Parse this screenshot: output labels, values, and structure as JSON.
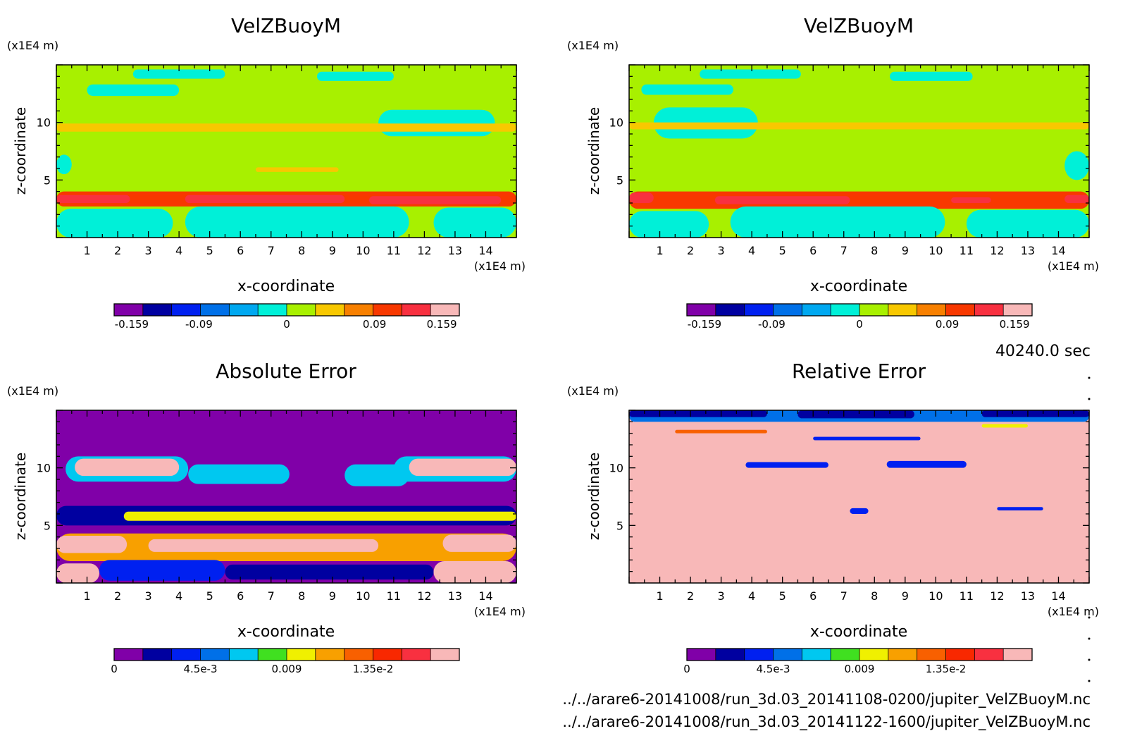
{
  "time_label": "40240.0 sec",
  "files": [
    "../../arare6-20141008/run_3d.03_20141108-0200/jupiter_VelZBuoyM.nc",
    "../../arare6-20141008/run_3d.03_20141122-1600/jupiter_VelZBuoyM.nc"
  ],
  "colors": {
    "vel": [
      "#8000a8",
      "#0000a0",
      "#0020f0",
      "#0070e8",
      "#00a8f0",
      "#00f0d8",
      "#a8f000",
      "#f8c800",
      "#f88000",
      "#f83800",
      "#f83040",
      "#f8b8b8"
    ],
    "err": [
      "#8000a8",
      "#0000a0",
      "#0020f0",
      "#0070e8",
      "#00c8f0",
      "#40e020",
      "#f0f000",
      "#f8a000",
      "#f86000",
      "#f82800",
      "#f83040",
      "#f8b8b8"
    ]
  },
  "chart_data": [
    {
      "type": "heatmap",
      "title": "VelZBuoyM",
      "xlabel": "x-coordinate",
      "ylabel": "z-coordinate",
      "x_unit": "(x1E4 m)",
      "y_unit": "(x1E4 m)",
      "xlim": [
        0,
        15
      ],
      "ylim": [
        0,
        15
      ],
      "xticks": [
        "1",
        "2",
        "3",
        "4",
        "5",
        "6",
        "7",
        "8",
        "9",
        "10",
        "11",
        "12",
        "13",
        "14"
      ],
      "yticks": [
        "5",
        "10"
      ],
      "colorbar": {
        "ticks": [
          "-0.159",
          "-0.09",
          "0",
          "0.09",
          "0.159"
        ],
        "tick_values": [
          -0.159,
          -0.09,
          0,
          0.09,
          0.159
        ],
        "range": [
          -0.177,
          0.177
        ],
        "levels": 12
      },
      "background_value": 0.01,
      "features": [
        {
          "x": [
            2.5,
            5.5
          ],
          "z": [
            13.8,
            14.6
          ],
          "value": -0.01
        },
        {
          "x": [
            8.5,
            11
          ],
          "z": [
            13.6,
            14.4
          ],
          "value": -0.01
        },
        {
          "x": [
            1,
            4
          ],
          "z": [
            12.3,
            13.3
          ],
          "value": -0.01
        },
        {
          "x": [
            10.5,
            14.3
          ],
          "z": [
            8.8,
            11.1
          ],
          "value": -0.01
        },
        {
          "x": [
            0,
            15
          ],
          "z": [
            9.2,
            9.9
          ],
          "value": 0.045
        },
        {
          "x": [
            6.5,
            9.2
          ],
          "z": [
            5.7,
            6.1
          ],
          "value": 0.045
        },
        {
          "x": [
            0,
            15
          ],
          "z": [
            2.7,
            4.0
          ],
          "value": 0.09
        },
        {
          "x": [
            0,
            2.4
          ],
          "z": [
            3.0,
            3.7
          ],
          "value": 0.14
        },
        {
          "x": [
            4.2,
            9.4
          ],
          "z": [
            3.0,
            3.7
          ],
          "value": 0.14
        },
        {
          "x": [
            10.2,
            14.5
          ],
          "z": [
            2.9,
            3.6
          ],
          "value": 0.14
        },
        {
          "x": [
            0,
            3.8
          ],
          "z": [
            0,
            2.5
          ],
          "value": -0.01
        },
        {
          "x": [
            4.2,
            11.5
          ],
          "z": [
            0,
            2.7
          ],
          "value": -0.01
        },
        {
          "x": [
            12.3,
            15
          ],
          "z": [
            0,
            2.6
          ],
          "value": -0.01
        },
        {
          "x": [
            0,
            0.5
          ],
          "z": [
            5.5,
            7.2
          ],
          "value": -0.01
        }
      ]
    },
    {
      "type": "heatmap",
      "title": "VelZBuoyM",
      "xlabel": "x-coordinate",
      "ylabel": "z-coordinate",
      "x_unit": "(x1E4 m)",
      "y_unit": "(x1E4 m)",
      "xlim": [
        0,
        15
      ],
      "ylim": [
        0,
        15
      ],
      "xticks": [
        "1",
        "2",
        "3",
        "4",
        "5",
        "6",
        "7",
        "8",
        "9",
        "10",
        "11",
        "12",
        "13",
        "14"
      ],
      "yticks": [
        "5",
        "10"
      ],
      "colorbar": {
        "ticks": [
          "-0.159",
          "-0.09",
          "0",
          "0.09",
          "0.159"
        ],
        "tick_values": [
          -0.159,
          -0.09,
          0,
          0.09,
          0.159
        ],
        "range": [
          -0.177,
          0.177
        ],
        "levels": 12
      },
      "background_value": 0.01,
      "features": [
        {
          "x": [
            2.3,
            5.6
          ],
          "z": [
            13.8,
            14.6
          ],
          "value": -0.01
        },
        {
          "x": [
            8.5,
            11.2
          ],
          "z": [
            13.6,
            14.4
          ],
          "value": -0.01
        },
        {
          "x": [
            0.4,
            3.4
          ],
          "z": [
            12.4,
            13.3
          ],
          "value": -0.01
        },
        {
          "x": [
            0.8,
            4.2
          ],
          "z": [
            8.6,
            11.3
          ],
          "value": -0.01
        },
        {
          "x": [
            0,
            15
          ],
          "z": [
            9.4,
            10.0
          ],
          "value": 0.045
        },
        {
          "x": [
            0,
            15
          ],
          "z": [
            2.5,
            4.0
          ],
          "value": 0.09
        },
        {
          "x": [
            0,
            0.8
          ],
          "z": [
            3.0,
            3.9
          ],
          "value": 0.14
        },
        {
          "x": [
            2.8,
            7.2
          ],
          "z": [
            2.9,
            3.6
          ],
          "value": 0.14
        },
        {
          "x": [
            10.5,
            11.8
          ],
          "z": [
            3.0,
            3.5
          ],
          "value": 0.14
        },
        {
          "x": [
            14.2,
            15
          ],
          "z": [
            3.0,
            3.7
          ],
          "value": 0.14
        },
        {
          "x": [
            0,
            2.6
          ],
          "z": [
            0,
            2.3
          ],
          "value": -0.01
        },
        {
          "x": [
            3.3,
            10.3
          ],
          "z": [
            0,
            2.7
          ],
          "value": -0.01
        },
        {
          "x": [
            11,
            15
          ],
          "z": [
            0,
            2.4
          ],
          "value": -0.01
        },
        {
          "x": [
            14.2,
            15
          ],
          "z": [
            5.0,
            7.5
          ],
          "value": -0.01
        }
      ]
    },
    {
      "type": "heatmap",
      "title": "Absolute Error",
      "xlabel": "x-coordinate",
      "ylabel": "z-coordinate",
      "x_unit": "(x1E4 m)",
      "y_unit": "(x1E4 m)",
      "xlim": [
        0,
        15
      ],
      "ylim": [
        0,
        15
      ],
      "xticks": [
        "1",
        "2",
        "3",
        "4",
        "5",
        "6",
        "7",
        "8",
        "9",
        "10",
        "11",
        "12",
        "13",
        "14"
      ],
      "yticks": [
        "5",
        "10"
      ],
      "colorbar": {
        "ticks": [
          "0",
          "4.5e-3",
          "0.009",
          "1.35e-2"
        ],
        "tick_values": [
          0,
          0.0045,
          0.009,
          0.0135
        ],
        "range": [
          0,
          0.018
        ],
        "levels": 12
      },
      "background_value": 0,
      "features": [
        {
          "x": [
            0.3,
            4.3
          ],
          "z": [
            8.8,
            11.0
          ],
          "value": 0.0068
        },
        {
          "x": [
            0.6,
            4.0
          ],
          "z": [
            9.3,
            10.8
          ],
          "value": 0.02
        },
        {
          "x": [
            4.3,
            7.6
          ],
          "z": [
            8.6,
            10.3
          ],
          "value": 0.0068
        },
        {
          "x": [
            9.4,
            11.5
          ],
          "z": [
            8.4,
            10.3
          ],
          "value": 0.0068
        },
        {
          "x": [
            11.0,
            15
          ],
          "z": [
            8.8,
            11.0
          ],
          "value": 0.0068
        },
        {
          "x": [
            11.5,
            15
          ],
          "z": [
            9.3,
            10.8
          ],
          "value": 0.02
        },
        {
          "x": [
            0,
            15
          ],
          "z": [
            5.0,
            6.7
          ],
          "value": 0.0022
        },
        {
          "x": [
            2.2,
            15
          ],
          "z": [
            5.4,
            6.2
          ],
          "value": 0.0098
        },
        {
          "x": [
            0,
            15
          ],
          "z": [
            1.9,
            4.3
          ],
          "value": 0.011
        },
        {
          "x": [
            0,
            2.3
          ],
          "z": [
            2.6,
            4.1
          ],
          "value": 0.02
        },
        {
          "x": [
            3.0,
            10.5
          ],
          "z": [
            2.7,
            3.8
          ],
          "value": 0.02
        },
        {
          "x": [
            12.6,
            15
          ],
          "z": [
            2.7,
            4.2
          ],
          "value": 0.02
        },
        {
          "x": [
            0,
            1.4
          ],
          "z": [
            0,
            1.7
          ],
          "value": 0.02
        },
        {
          "x": [
            12.3,
            15
          ],
          "z": [
            0,
            1.9
          ],
          "value": 0.02
        },
        {
          "x": [
            1.4,
            5.5
          ],
          "z": [
            0.2,
            2.0
          ],
          "value": 0.0032
        },
        {
          "x": [
            5.5,
            12.3
          ],
          "z": [
            0.3,
            1.6
          ],
          "value": 0.0015
        }
      ]
    },
    {
      "type": "heatmap",
      "title": "Relative Error",
      "xlabel": "x-coordinate",
      "ylabel": "z-coordinate",
      "x_unit": "(x1E4 m)",
      "y_unit": "(x1E4 m)",
      "xlim": [
        0,
        15
      ],
      "ylim": [
        0,
        15
      ],
      "xticks": [
        "1",
        "2",
        "3",
        "4",
        "5",
        "6",
        "7",
        "8",
        "9",
        "10",
        "11",
        "12",
        "13",
        "14"
      ],
      "yticks": [
        "5",
        "10"
      ],
      "colorbar": {
        "ticks": [
          "0",
          "4.5e-3",
          "0.009",
          "1.35e-2"
        ],
        "tick_values": [
          0,
          0.0045,
          0.009,
          0.0135
        ],
        "range": [
          0,
          0.018
        ],
        "levels": 12
      },
      "background_value": 0.02,
      "features": [
        {
          "x": [
            0,
            15
          ],
          "z": [
            14.0,
            15
          ],
          "value": 0.005
        },
        {
          "x": [
            0,
            4.5
          ],
          "z": [
            14.4,
            15
          ],
          "value": 0.0015
        },
        {
          "x": [
            5.5,
            9.3
          ],
          "z": [
            14.3,
            15
          ],
          "value": 0.0015
        },
        {
          "x": [
            11.5,
            15
          ],
          "z": [
            14.4,
            15
          ],
          "value": 0.0015
        },
        {
          "x": [
            6.0,
            9.5
          ],
          "z": [
            12.4,
            12.7
          ],
          "value": 0.004
        },
        {
          "x": [
            3.8,
            6.5
          ],
          "z": [
            10.0,
            10.5
          ],
          "value": 0.003
        },
        {
          "x": [
            8.4,
            11.0
          ],
          "z": [
            10.0,
            10.6
          ],
          "value": 0.003
        },
        {
          "x": [
            7.2,
            7.8
          ],
          "z": [
            6.0,
            6.5
          ],
          "value": 0.004
        },
        {
          "x": [
            12.0,
            13.5
          ],
          "z": [
            6.3,
            6.6
          ],
          "value": 0.003
        },
        {
          "x": [
            1.5,
            4.5
          ],
          "z": [
            13.0,
            13.3
          ],
          "value": 0.012
        },
        {
          "x": [
            11.5,
            13.0
          ],
          "z": [
            13.5,
            13.8
          ],
          "value": 0.009
        }
      ]
    }
  ]
}
